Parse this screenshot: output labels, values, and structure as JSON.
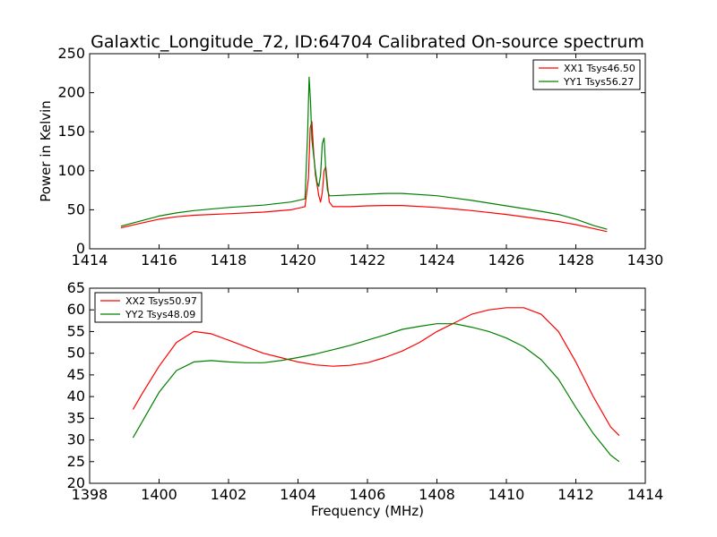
{
  "figure": {
    "title": "Galaxtic_Longitude_72, ID:64704 Calibrated On-source spectrum"
  },
  "chart_data": [
    {
      "type": "line",
      "title": "Galaxtic_Longitude_72, ID:64704 Calibrated On-source spectrum",
      "xlabel": "",
      "ylabel": "Power in Kelvin",
      "xlim": [
        1414,
        1430
      ],
      "ylim": [
        0,
        250
      ],
      "xticks": [
        1414,
        1416,
        1418,
        1420,
        1422,
        1424,
        1426,
        1428,
        1430
      ],
      "yticks": [
        0,
        50,
        100,
        150,
        200,
        250
      ],
      "grid": false,
      "legend_position": "top-right",
      "series": [
        {
          "name": "XX1 Tsys46.50",
          "color": "#ff0000",
          "x": [
            1414.9,
            1415.5,
            1416,
            1416.5,
            1417,
            1418,
            1419,
            1419.8,
            1420.2,
            1420.3,
            1420.35,
            1420.4,
            1420.45,
            1420.5,
            1420.55,
            1420.6,
            1420.65,
            1420.7,
            1420.75,
            1420.8,
            1420.85,
            1420.9,
            1421,
            1421.5,
            1422,
            1422.5,
            1423,
            1424,
            1425,
            1426,
            1427,
            1427.5,
            1428,
            1428.5,
            1428.9
          ],
          "y": [
            27,
            33,
            38,
            41,
            43,
            45,
            47,
            50,
            54,
            90,
            155,
            163,
            125,
            95,
            82,
            68,
            60,
            72,
            100,
            105,
            82,
            60,
            54,
            54,
            55,
            55.5,
            55.5,
            53,
            49,
            44,
            38,
            35,
            31,
            26,
            22
          ]
        },
        {
          "name": "YY1 Tsys56.27",
          "color": "#008000",
          "x": [
            1414.9,
            1415.5,
            1416,
            1416.5,
            1417,
            1418,
            1419,
            1419.8,
            1420.2,
            1420.28,
            1420.32,
            1420.36,
            1420.4,
            1420.45,
            1420.5,
            1420.55,
            1420.6,
            1420.65,
            1420.7,
            1420.75,
            1420.8,
            1420.85,
            1420.9,
            1421,
            1421.5,
            1422,
            1422.5,
            1423,
            1424,
            1425,
            1426,
            1427,
            1427.5,
            1428,
            1428.5,
            1428.9
          ],
          "y": [
            29,
            36,
            42,
            46,
            49,
            53,
            56,
            60,
            64,
            150,
            220,
            190,
            140,
            120,
            100,
            85,
            80,
            95,
            135,
            142,
            100,
            75,
            68,
            68,
            69,
            70,
            71,
            71,
            68,
            62,
            55,
            48,
            44,
            38,
            30,
            25
          ]
        }
      ]
    },
    {
      "type": "line",
      "title": "",
      "xlabel": "Frequency (MHz)",
      "ylabel": "",
      "xlim": [
        1398,
        1414
      ],
      "ylim": [
        20,
        65
      ],
      "xticks": [
        1398,
        1400,
        1402,
        1404,
        1406,
        1408,
        1410,
        1412,
        1414
      ],
      "yticks": [
        20,
        25,
        30,
        35,
        40,
        45,
        50,
        55,
        60,
        65
      ],
      "grid": false,
      "legend_position": "top-left",
      "series": [
        {
          "name": "XX2 Tsys50.97",
          "color": "#ff0000",
          "x": [
            1399.25,
            1399.5,
            1400,
            1400.5,
            1401,
            1401.5,
            1402,
            1402.5,
            1403,
            1403.5,
            1404,
            1404.5,
            1405,
            1405.5,
            1406,
            1406.5,
            1407,
            1407.5,
            1408,
            1408.5,
            1409,
            1409.5,
            1410,
            1410.5,
            1411,
            1411.5,
            1412,
            1412.5,
            1413,
            1413.25
          ],
          "y": [
            37,
            40.5,
            47,
            52.5,
            55,
            54.5,
            53,
            51.5,
            50,
            49,
            48,
            47.3,
            47,
            47.2,
            47.8,
            49,
            50.5,
            52.5,
            55,
            57,
            59,
            60,
            60.5,
            60.5,
            59,
            55,
            48,
            40,
            33,
            31
          ]
        },
        {
          "name": "YY2 Tsys48.09",
          "color": "#008000",
          "x": [
            1399.25,
            1399.5,
            1400,
            1400.5,
            1401,
            1401.5,
            1402,
            1402.5,
            1403,
            1403.5,
            1404,
            1404.5,
            1405,
            1405.5,
            1406,
            1406.5,
            1407,
            1407.5,
            1408,
            1408.5,
            1409,
            1409.5,
            1410,
            1410.5,
            1411,
            1411.5,
            1412,
            1412.5,
            1413,
            1413.25
          ],
          "y": [
            30.5,
            34,
            41,
            46,
            48,
            48.3,
            48,
            47.8,
            47.8,
            48.3,
            49,
            49.8,
            50.8,
            51.8,
            53,
            54.2,
            55.5,
            56.2,
            56.8,
            56.8,
            56,
            55,
            53.5,
            51.5,
            48.5,
            44,
            37.5,
            31.5,
            26.5,
            25
          ]
        }
      ]
    }
  ]
}
